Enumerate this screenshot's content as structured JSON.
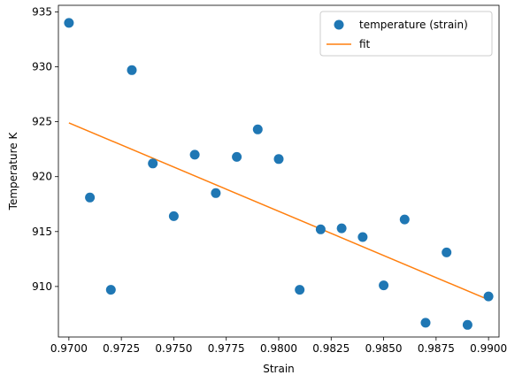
{
  "chart_data": {
    "type": "scatter",
    "title": "",
    "xlabel": "Strain",
    "ylabel": "Temperature K",
    "xlim": [
      0.9695,
      0.9905
    ],
    "ylim": [
      905.4,
      935.6
    ],
    "xticks": [
      0.97,
      0.9725,
      0.975,
      0.9775,
      0.98,
      0.9825,
      0.985,
      0.9875,
      0.99
    ],
    "xtick_labels": [
      "0.9700",
      "0.9725",
      "0.9750",
      "0.9775",
      "0.9800",
      "0.9825",
      "0.9850",
      "0.9875",
      "0.9900"
    ],
    "yticks": [
      910,
      915,
      920,
      925,
      930,
      935
    ],
    "ytick_labels": [
      "910",
      "915",
      "920",
      "925",
      "930",
      "935"
    ],
    "grid": false,
    "legend": {
      "placement": "upper-right"
    },
    "series": [
      {
        "name": "temperature (strain)",
        "kind": "scatter",
        "color": "#1f77b4",
        "x": [
          0.97,
          0.971,
          0.972,
          0.973,
          0.974,
          0.975,
          0.976,
          0.977,
          0.978,
          0.979,
          0.98,
          0.981,
          0.982,
          0.983,
          0.984,
          0.985,
          0.986,
          0.987,
          0.988,
          0.989,
          0.99
        ],
        "y": [
          934.0,
          918.1,
          909.7,
          929.7,
          921.2,
          916.4,
          922.0,
          918.5,
          921.8,
          924.3,
          921.6,
          909.7,
          915.2,
          915.3,
          914.5,
          910.1,
          916.1,
          906.7,
          913.1,
          906.5,
          909.1
        ]
      },
      {
        "name": "fit",
        "kind": "line",
        "color": "#ff7f0e",
        "x": [
          0.97,
          0.99
        ],
        "y": [
          924.9,
          908.8
        ]
      }
    ]
  }
}
